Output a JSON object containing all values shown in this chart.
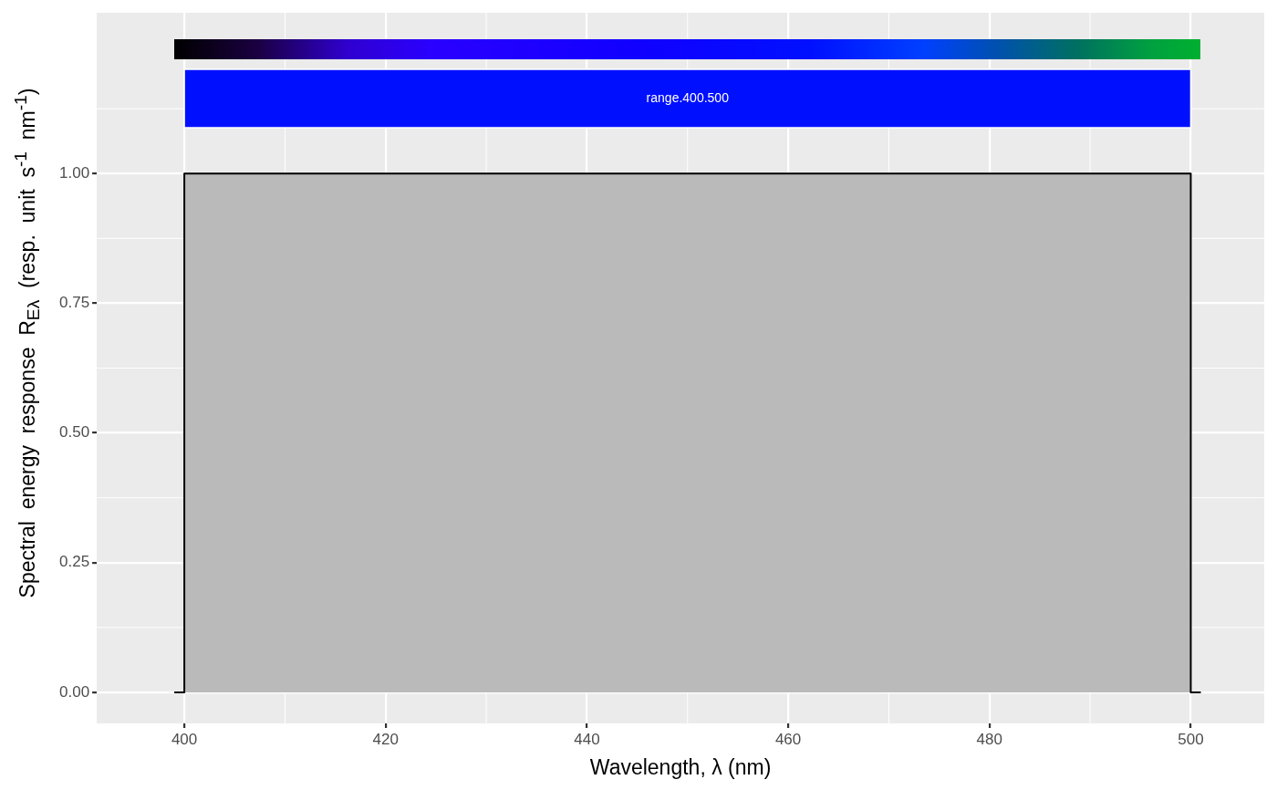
{
  "chart_data": {
    "type": "area",
    "xlabel": "Wavelength, λ (nm)",
    "ylabel": "Spectral  energy  response  R$_{Eλ}$  (resp.  unit  s$^{-1}$  nm$^{-1}$)",
    "x": [
      399,
      400,
      400,
      500,
      500,
      501
    ],
    "series": [
      {
        "color": "#bababa",
        "values": [
          0,
          0,
          1,
          1,
          0,
          0
        ]
      }
    ],
    "bands": [
      {
        "axis": "x",
        "from": 400,
        "to": 500,
        "label": "range.400.500",
        "color": "#0010ff"
      }
    ],
    "xlim": [
      391.3,
      507.3
    ],
    "xticks": [
      400,
      420,
      440,
      460,
      480,
      500
    ],
    "ylim": [
      -0.06,
      1.31
    ],
    "yticks": [
      {
        "value": 0,
        "label": "0.00"
      },
      {
        "value": 0.25,
        "label": "0.25"
      },
      {
        "value": 0.5,
        "label": "0.50"
      },
      {
        "value": 0.75,
        "label": "0.75"
      },
      {
        "value": 1,
        "label": "1.00"
      }
    ],
    "grid": true,
    "legend": false
  }
}
